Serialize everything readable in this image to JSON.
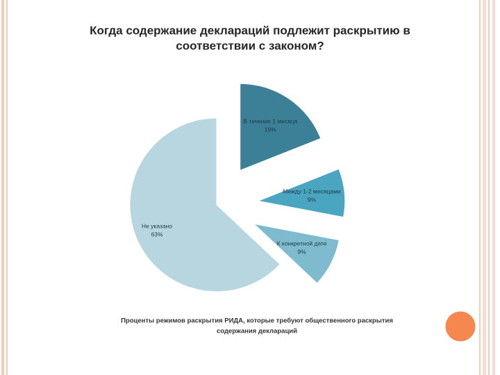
{
  "chart_data": {
    "type": "pie",
    "title_lines": [
      "Когда содержание деклараций подлежит раскрытию в",
      "соответствии с законом?"
    ],
    "caption_lines": [
      "Проценты режимов раскрытия РИДА, которые требуют общественного раскрытия",
      "содержания деклараций"
    ],
    "categories": [
      "В течение 1 месяца",
      "Между 1-2 месяцами",
      "К конкретной дате",
      "Не указано"
    ],
    "values": [
      19,
      9,
      9,
      63
    ],
    "value_labels": [
      "19%",
      "9%",
      "9%",
      "63%"
    ],
    "colors": [
      "#3b8097",
      "#4aa5c0",
      "#7fbbcf",
      "#b8d6e0"
    ],
    "explode": [
      true,
      true,
      true,
      false
    ]
  }
}
